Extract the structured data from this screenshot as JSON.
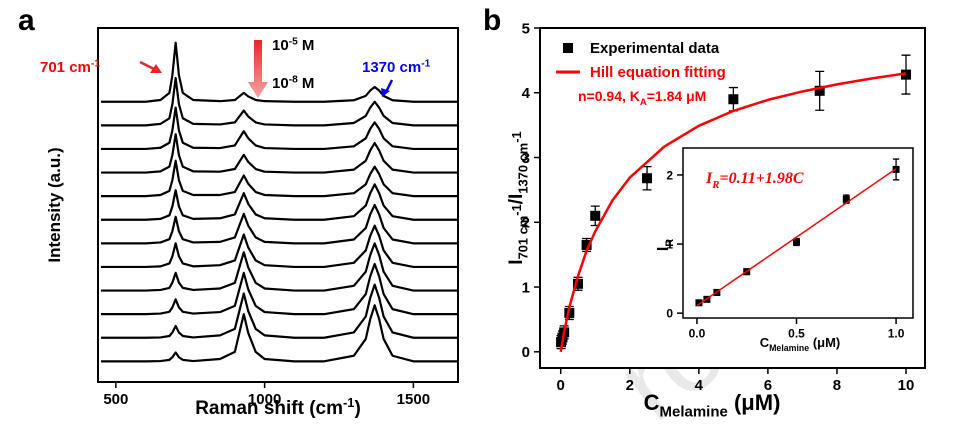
{
  "watermark": "roofs",
  "chart_data": [
    {
      "type": "line",
      "panel_label": "a",
      "xlabel": [
        {
          "text": "Raman shift (cm"
        },
        {
          "sup": "-1"
        },
        {
          "text": ")"
        }
      ],
      "ylabel": [
        {
          "text": "Intensity (a.u.)"
        }
      ],
      "xlim": [
        440,
        1650
      ],
      "xticks": [
        500,
        1000,
        1500
      ],
      "ylim": [
        0,
        12
      ],
      "x": [
        450,
        500,
        600,
        650,
        680,
        690,
        701,
        712,
        725,
        760,
        850,
        900,
        915,
        930,
        945,
        970,
        1000,
        1100,
        1200,
        1300,
        1340,
        1355,
        1370,
        1385,
        1400,
        1430,
        1500,
        1650
      ],
      "series": [
        {
          "color": "#000000",
          "values": [
            9.5,
            9.5,
            9.5,
            9.56,
            9.8,
            10.4,
            11.5,
            10.4,
            9.8,
            9.56,
            9.52,
            9.56,
            9.68,
            9.8,
            9.68,
            9.56,
            9.52,
            9.5,
            9.5,
            9.55,
            9.7,
            9.88,
            10,
            9.88,
            9.7,
            9.55,
            9.5,
            9.5
          ]
        },
        {
          "color": "#000000",
          "values": [
            8.7,
            8.7,
            8.7,
            8.75,
            8.94,
            9.42,
            10.3,
            9.42,
            8.94,
            8.75,
            8.73,
            8.8,
            9,
            9.2,
            9,
            8.8,
            8.73,
            8.7,
            8.7,
            8.78,
            9.02,
            9.3,
            9.5,
            9.3,
            9.02,
            8.78,
            8.7,
            8.7
          ]
        },
        {
          "color": "#000000",
          "values": [
            7.9,
            7.9,
            7.9,
            7.94,
            8.11,
            8.53,
            9.3,
            8.53,
            8.11,
            7.94,
            7.93,
            8.02,
            8.26,
            8.5,
            8.26,
            8.02,
            7.93,
            7.9,
            7.9,
            7.99,
            8.26,
            8.58,
            8.8,
            8.58,
            8.26,
            7.99,
            7.9,
            7.9
          ]
        },
        {
          "color": "#000000",
          "values": [
            7.1,
            7.1,
            7.1,
            7.14,
            7.3,
            7.69,
            8.4,
            7.69,
            7.3,
            7.14,
            7.13,
            7.22,
            7.46,
            7.7,
            7.46,
            7.22,
            7.13,
            7.1,
            7.1,
            7.2,
            7.5,
            7.85,
            8.1,
            7.85,
            7.5,
            7.2,
            7.1,
            7.1
          ]
        },
        {
          "color": "#000000",
          "values": [
            6.3,
            6.3,
            6.3,
            6.34,
            6.48,
            6.84,
            7.5,
            6.84,
            6.48,
            6.34,
            6.34,
            6.44,
            6.72,
            7,
            6.72,
            6.44,
            6.34,
            6.3,
            6.3,
            6.4,
            6.7,
            7.05,
            7.3,
            7.05,
            6.7,
            6.4,
            6.3,
            6.3
          ]
        },
        {
          "color": "#000000",
          "values": [
            5.5,
            5.5,
            5.5,
            5.53,
            5.65,
            5.95,
            6.5,
            5.95,
            5.65,
            5.53,
            5.55,
            5.68,
            6.04,
            6.4,
            6.04,
            5.68,
            5.55,
            5.5,
            5.5,
            5.62,
            5.98,
            6.4,
            6.7,
            6.4,
            5.98,
            5.62,
            5.5,
            5.5
          ]
        },
        {
          "color": "#000000",
          "values": [
            4.7,
            4.7,
            4.7,
            4.73,
            4.84,
            5.11,
            5.6,
            5.11,
            4.84,
            4.73,
            4.75,
            4.9,
            5.3,
            5.7,
            5.3,
            4.9,
            4.75,
            4.7,
            4.7,
            4.83,
            5.22,
            5.68,
            6,
            5.68,
            5.22,
            4.83,
            4.7,
            4.7
          ]
        },
        {
          "color": "#000000",
          "values": [
            3.9,
            3.9,
            3.9,
            3.92,
            4.02,
            4.26,
            4.7,
            4.26,
            4.02,
            3.92,
            3.96,
            4.12,
            4.56,
            5,
            4.56,
            4.12,
            3.96,
            3.9,
            3.9,
            4.04,
            4.46,
            4.95,
            5.3,
            4.95,
            4.46,
            4.04,
            3.9,
            3.9
          ]
        },
        {
          "color": "#000000",
          "values": [
            3.1,
            3.1,
            3.1,
            3.12,
            3.19,
            3.37,
            3.7,
            3.37,
            3.19,
            3.12,
            3.17,
            3.36,
            3.88,
            4.4,
            3.88,
            3.36,
            3.17,
            3.1,
            3.1,
            3.26,
            3.74,
            4.3,
            4.7,
            4.3,
            3.74,
            3.26,
            3.1,
            3.1
          ]
        },
        {
          "color": "#000000",
          "values": [
            2.3,
            2.3,
            2.3,
            2.32,
            2.38,
            2.53,
            2.8,
            2.53,
            2.38,
            2.32,
            2.37,
            2.58,
            3.14,
            3.7,
            3.14,
            2.58,
            2.37,
            2.3,
            2.3,
            2.47,
            2.98,
            3.58,
            4,
            3.58,
            2.98,
            2.47,
            2.3,
            2.3
          ]
        },
        {
          "color": "#000000",
          "values": [
            1.5,
            1.5,
            1.5,
            1.51,
            1.56,
            1.68,
            1.9,
            1.68,
            1.56,
            1.51,
            1.58,
            1.8,
            2.4,
            3,
            2.4,
            1.8,
            1.58,
            1.5,
            1.5,
            1.68,
            2.22,
            2.85,
            3.3,
            2.85,
            2.22,
            1.68,
            1.5,
            1.5
          ]
        },
        {
          "color": "#000000",
          "values": [
            0.7,
            0.7,
            0.7,
            0.71,
            0.75,
            0.84,
            1,
            0.84,
            0.75,
            0.71,
            0.78,
            1.02,
            1.66,
            2.3,
            1.66,
            1.02,
            0.78,
            0.7,
            0.7,
            0.89,
            1.46,
            2.13,
            2.6,
            2.13,
            1.46,
            0.89,
            0.7,
            0.7
          ]
        }
      ],
      "annotations": [
        {
          "parts": [
            {
              "text": "701 cm"
            },
            {
              "sup": "-1"
            }
          ],
          "color": "#ff0000"
        },
        {
          "parts": [
            {
              "text": "10"
            },
            {
              "sup": "-5"
            },
            {
              "text": " M"
            }
          ],
          "color": "#000000"
        },
        {
          "parts": [
            {
              "text": "10"
            },
            {
              "sup": "-8"
            },
            {
              "text": " M"
            }
          ],
          "color": "#000000"
        },
        {
          "parts": [
            {
              "text": "1370 cm"
            },
            {
              "sup": "-1"
            }
          ],
          "color": "#0000ff"
        }
      ]
    },
    {
      "type": "scatter",
      "panel_label": "b",
      "xlabel": [
        {
          "text": "C"
        },
        {
          "sub": "Melamine"
        },
        {
          "text": " (μM)"
        }
      ],
      "ylabel": [
        {
          "text": "I"
        },
        {
          "sub": "701 cm"
        },
        {
          "subsup": "-1"
        },
        {
          "text": "/I"
        },
        {
          "sub": "1370 cm"
        },
        {
          "subsup": "-1"
        }
      ],
      "xlim": [
        -0.6,
        10.55
      ],
      "xticks": [
        0,
        2,
        4,
        6,
        8,
        10
      ],
      "ylim": [
        -0.25,
        5
      ],
      "yticks": [
        0,
        1,
        2,
        3,
        4,
        5
      ],
      "legend": "upper left",
      "series": [
        {
          "name": "Experimental data",
          "color": "#000000",
          "x": [
            0.01,
            0.05,
            0.1,
            0.25,
            0.5,
            0.75,
            1,
            2.5,
            5,
            7.5,
            10
          ],
          "values": [
            0.15,
            0.22,
            0.3,
            0.6,
            1.05,
            1.65,
            2.1,
            2.68,
            3.9,
            4.03,
            4.28
          ],
          "errors": [
            0.1,
            0.1,
            0.1,
            0.1,
            0.1,
            0.1,
            0.15,
            0.18,
            0.18,
            0.3,
            0.3
          ]
        },
        {
          "name": "Hill equation fitting",
          "type": "line",
          "color": "#ff0000",
          "x": [
            0,
            0.1,
            0.25,
            0.5,
            0.75,
            1,
            1.5,
            2,
            3,
            4,
            5,
            6,
            7,
            8,
            9,
            10
          ],
          "values": [
            0,
            0.31,
            0.69,
            1.17,
            1.56,
            1.86,
            2.34,
            2.69,
            3.17,
            3.49,
            3.72,
            3.89,
            4.02,
            4.13,
            4.22,
            4.3
          ]
        }
      ],
      "annotations": [
        {
          "parts": [
            {
              "text": "n=0.94, K"
            },
            {
              "sub": "A"
            },
            {
              "text": "=1.84 μM"
            }
          ],
          "color": "#ff0000"
        }
      ]
    },
    {
      "type": "scatter",
      "xlabel": [
        {
          "text": "C"
        },
        {
          "sub": "Melamine"
        },
        {
          "text": " (μM)"
        }
      ],
      "ylabel": [
        {
          "text": "I"
        },
        {
          "sub": "R"
        }
      ],
      "xlim": [
        -0.07,
        1.085
      ],
      "xticks": [
        {
          "value": 0,
          "label": "0.0"
        },
        {
          "value": 0.5,
          "label": "0.5"
        },
        {
          "value": 1,
          "label": "1.0"
        }
      ],
      "ylim": [
        -0.07,
        2.39
      ],
      "yticks": [
        0,
        1,
        2
      ],
      "series": [
        {
          "color": "#000000",
          "x": [
            0.01,
            0.05,
            0.1,
            0.25,
            0.5,
            0.75,
            1
          ],
          "values": [
            0.15,
            0.2,
            0.3,
            0.6,
            1.03,
            1.65,
            2.08
          ],
          "errors": [
            0.03,
            0.03,
            0.04,
            0.04,
            0.05,
            0.06,
            0.15
          ]
        },
        {
          "type": "line",
          "color": "#ff0000",
          "x": [
            0,
            1
          ],
          "values": [
            0.11,
            2.09
          ]
        }
      ],
      "annotations": [
        {
          "parts": [
            {
              "text": "I"
            },
            {
              "sub": "R"
            },
            {
              "text": "=0.11+1.98"
            },
            {
              "text": "C"
            }
          ],
          "color": "#ff0000"
        }
      ]
    }
  ]
}
